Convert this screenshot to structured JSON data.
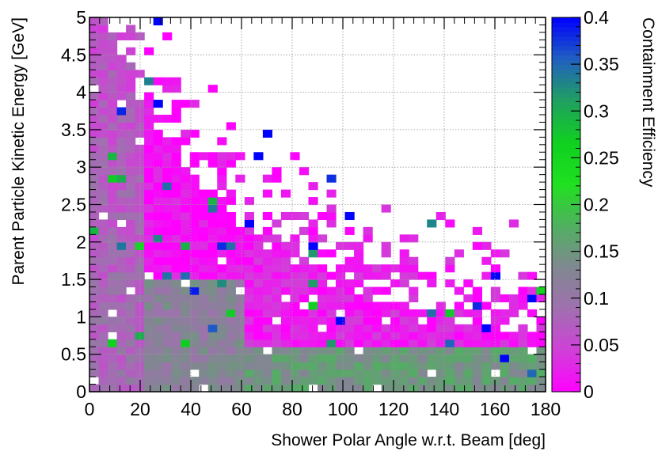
{
  "chart_data": {
    "type": "heatmap",
    "title": "",
    "xlabel": "Shower Polar Angle w.r.t. Beam [deg]",
    "ylabel": "Parent Particle Kinetic Energy [GeV]",
    "zlabel": "Containment Efficiency",
    "xlim": [
      0,
      180
    ],
    "ylim": [
      0,
      5
    ],
    "zlim": [
      0,
      0.4
    ],
    "x_ticks": [
      "0",
      "20",
      "40",
      "60",
      "80",
      "100",
      "120",
      "140",
      "160",
      "180"
    ],
    "y_ticks": [
      "0",
      "0.5",
      "1",
      "1.5",
      "2",
      "2.5",
      "3",
      "3.5",
      "4",
      "4.5",
      "5"
    ],
    "z_ticks": [
      "0",
      "0.05",
      "0.1",
      "0.15",
      "0.2",
      "0.25",
      "0.3",
      "0.35",
      "0.4"
    ],
    "grid": true,
    "colormap": [
      "#ff00ff",
      "#d040d8",
      "#a070b0",
      "#808890",
      "#50b060",
      "#20e020",
      "#10d020",
      "#20a060",
      "#2060c0",
      "#0000ff"
    ],
    "x_bin_width": 3.6,
    "y_bin_width": 0.1,
    "summary_bands": [
      {
        "x_range": [
          0,
          20
        ],
        "y_range": [
          0,
          5
        ],
        "typical_value": 0.08
      },
      {
        "x_range": [
          20,
          60
        ],
        "y_range": [
          0,
          1.5
        ],
        "typical_value": 0.12
      },
      {
        "x_range": [
          60,
          180
        ],
        "y_range": [
          0,
          0.6
        ],
        "typical_value": 0.15
      },
      {
        "x_range": [
          60,
          180
        ],
        "y_range": [
          0.6,
          2.5
        ],
        "typical_value": 0.02
      },
      {
        "x_range": [
          20,
          40
        ],
        "y_range": [
          2.5,
          5
        ],
        "typical_value": 0.01
      }
    ],
    "notable_bins": [
      {
        "x": 27,
        "y": 4.95,
        "value": 0.4
      },
      {
        "x": 27,
        "y": 3.85,
        "value": 0.4
      },
      {
        "x": 70,
        "y": 3.45,
        "value": 0.4
      },
      {
        "x": 66,
        "y": 3.15,
        "value": 0.4
      },
      {
        "x": 63,
        "y": 2.25,
        "value": 0.4
      },
      {
        "x": 135,
        "y": 2.25,
        "value": 0.33
      },
      {
        "x": 88,
        "y": 1.95,
        "value": 0.4
      },
      {
        "x": 102,
        "y": 2.35,
        "value": 0.4
      },
      {
        "x": 160,
        "y": 1.55,
        "value": 0.4
      },
      {
        "x": 174,
        "y": 1.25,
        "value": 0.4
      },
      {
        "x": 152,
        "y": 1.15,
        "value": 0.38
      },
      {
        "x": 100,
        "y": 0.95,
        "value": 0.4
      },
      {
        "x": 155,
        "y": 0.85,
        "value": 0.4
      },
      {
        "x": 165,
        "y": 0.45,
        "value": 0.4
      },
      {
        "x": 175,
        "y": 0.25,
        "value": 0.35
      }
    ]
  }
}
